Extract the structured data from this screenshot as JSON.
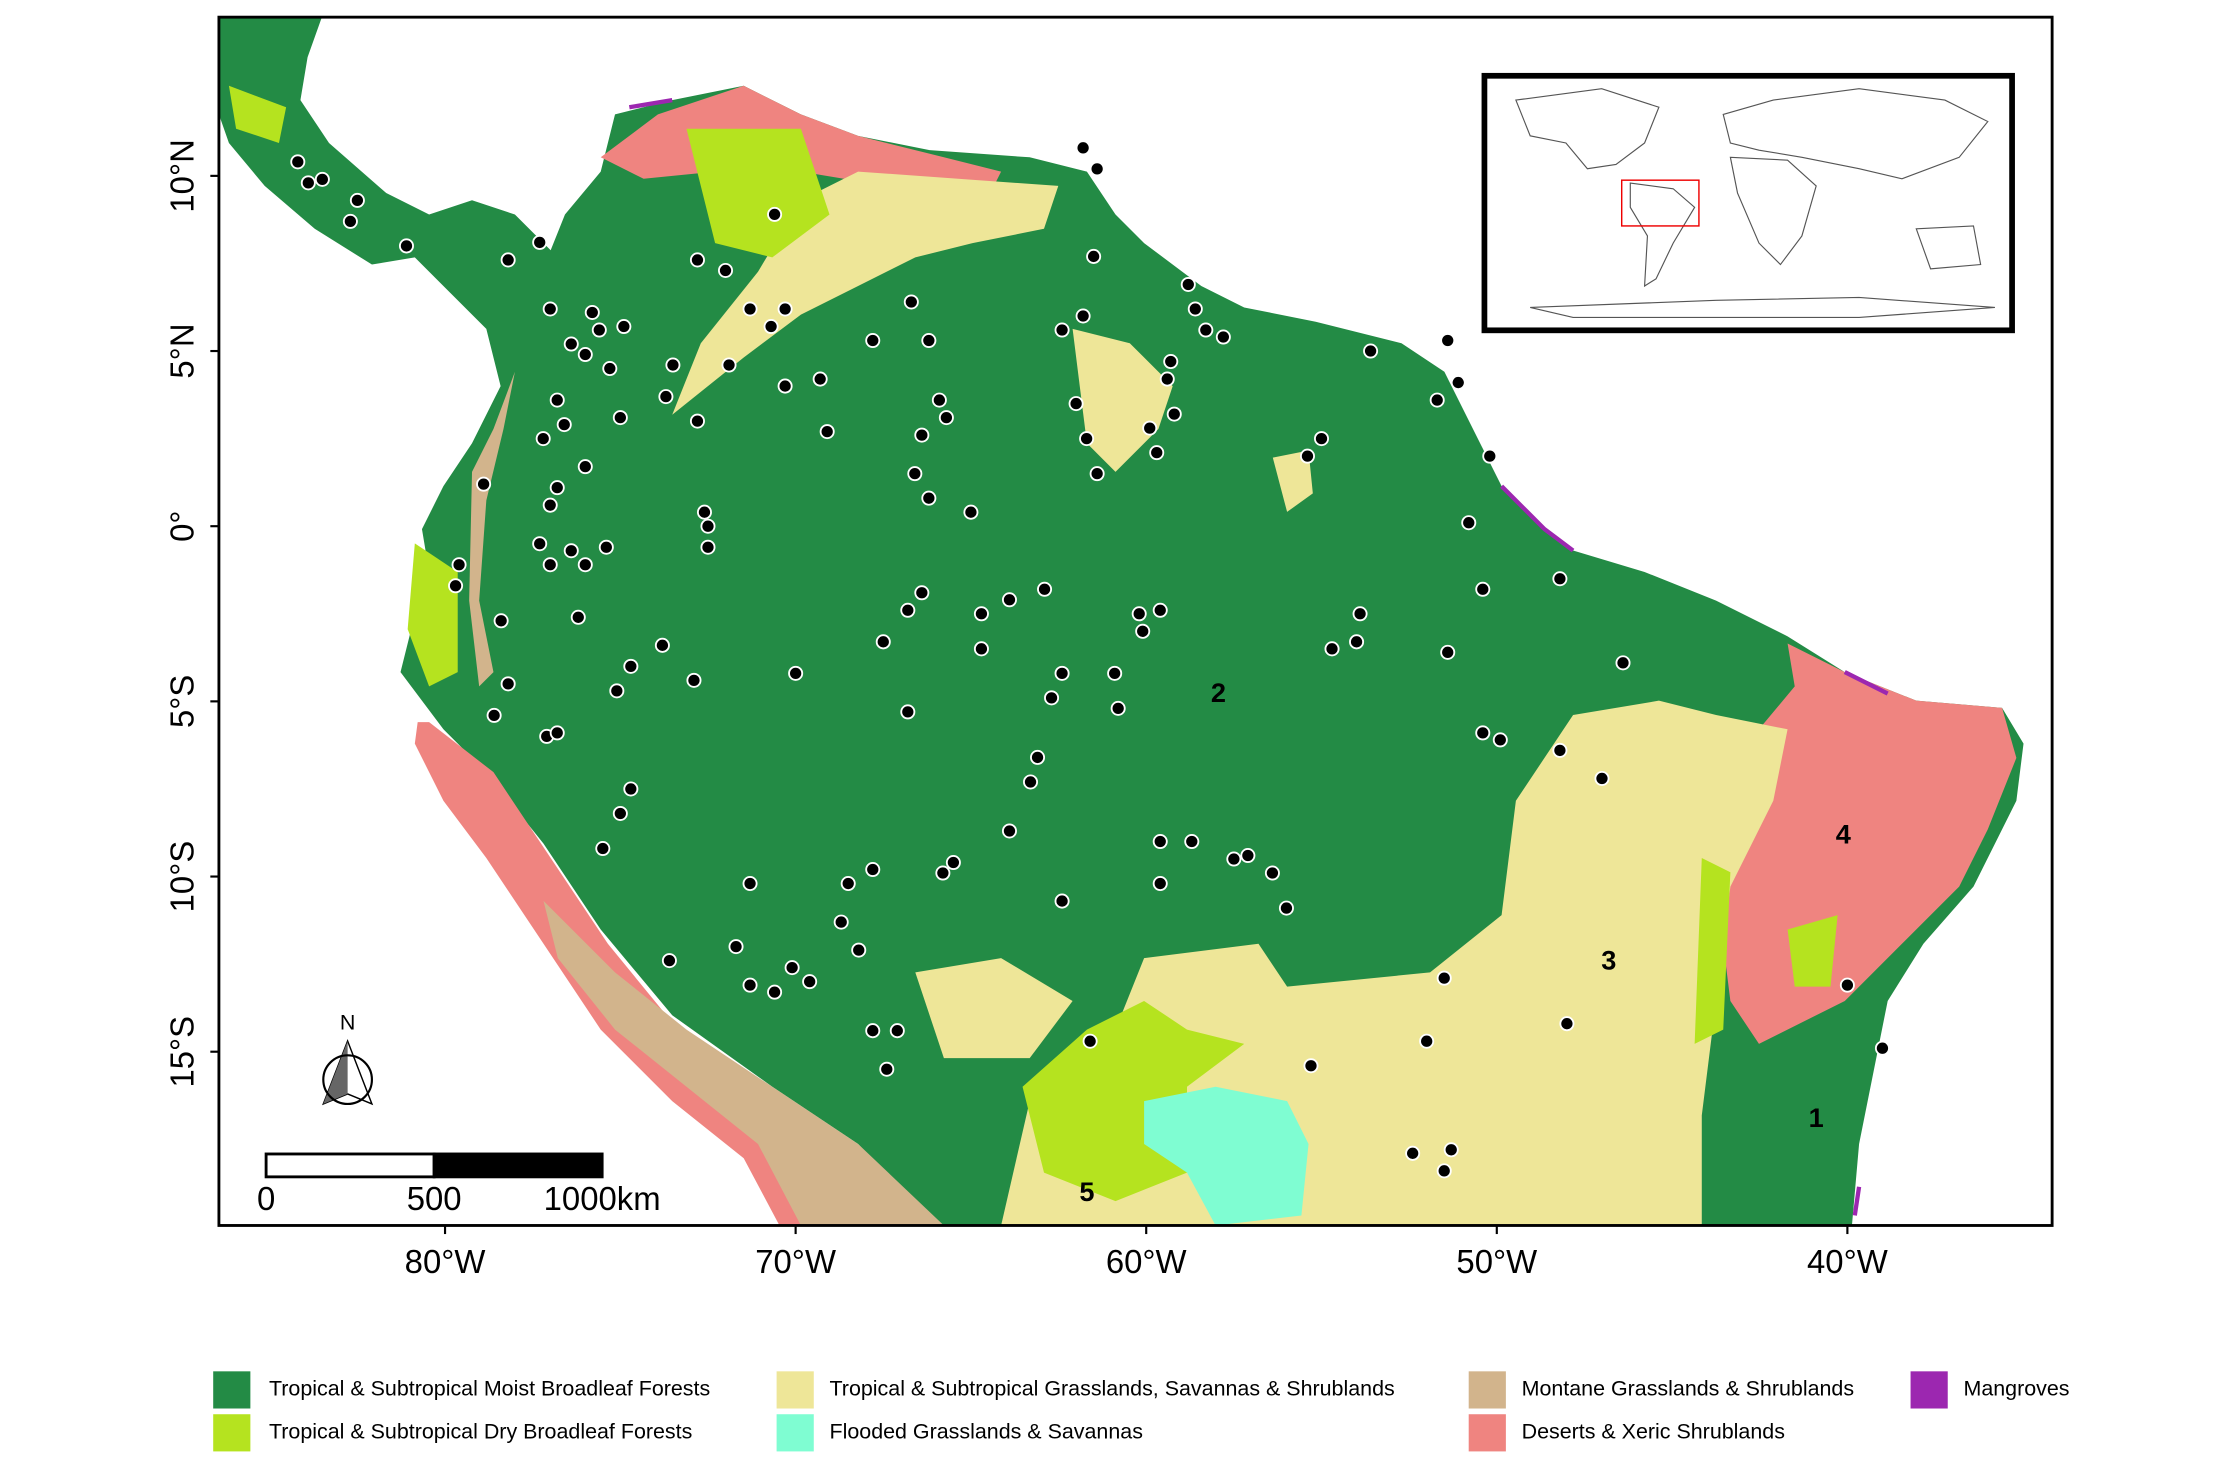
{
  "map": {
    "xlim": [
      -86.45,
      -34.16
    ],
    "ylim": [
      -19.96,
      14.53
    ],
    "xticks": [
      {
        "value": -80,
        "label": "80°W"
      },
      {
        "value": -70,
        "label": "70°W"
      },
      {
        "value": -60,
        "label": "60°W"
      },
      {
        "value": -50,
        "label": "50°W"
      },
      {
        "value": -40,
        "label": "40°W"
      }
    ],
    "yticks": [
      {
        "value": 10,
        "label": "10°N"
      },
      {
        "value": 5,
        "label": "5°N"
      },
      {
        "value": 0,
        "label": "0°"
      },
      {
        "value": -5,
        "label": "5°S"
      },
      {
        "value": -10,
        "label": "10°S"
      },
      {
        "value": -15,
        "label": "15°S"
      }
    ],
    "points": {
      "lon": [
        -84.2,
        -83.9,
        -83.5,
        -82.5,
        -82.7,
        -81.1,
        -78.2,
        -77.3,
        -70.6,
        -72.8,
        -72.0,
        -77.0,
        -75.8,
        -74.9,
        -75.6,
        -76.4,
        -76.0,
        -75.3,
        -73.5,
        -73.7,
        -75.0,
        -76.8,
        -77.2,
        -76.6,
        -76.0,
        -76.8,
        -77.0,
        -78.9,
        -79.6,
        -79.7,
        -77.3,
        -77.0,
        -76.4,
        -76.0,
        -75.4,
        -76.2,
        -78.4,
        -78.2,
        -78.6,
        -77.1,
        -76.8,
        -75.5,
        -75.0,
        -74.7,
        -74.7,
        -75.1,
        -73.8,
        -72.9,
        -72.8,
        -71.9,
        -71.3,
        -70.3,
        -70.7,
        -70.3,
        -69.3,
        -69.1,
        -67.8,
        -66.7,
        -66.2,
        -65.9,
        -65.7,
        -66.4,
        -66.6,
        -66.2,
        -65.0,
        -72.6,
        -72.5,
        -72.5,
        -70.0,
        -67.5,
        -66.8,
        -66.4,
        -64.7,
        -63.9,
        -62.9,
        -64.7,
        -66.8,
        -62.7,
        -62.4,
        -60.9,
        -60.8,
        -60.2,
        -59.6,
        -60.1,
        -63.1,
        -63.3,
        -63.9,
        -65.5,
        -65.8,
        -67.8,
        -68.5,
        -71.3,
        -68.7,
        -68.2,
        -70.1,
        -71.7,
        -71.3,
        -70.6,
        -69.6,
        -73.6,
        -67.8,
        -67.1,
        -67.4,
        -62.4,
        -59.6,
        -58.7,
        -59.6,
        -57.5,
        -57.1,
        -56.4,
        -56.0,
        -61.6,
        -55.3,
        -52.0,
        -48.0,
        -51.5,
        -47.0,
        -48.2,
        -49.9,
        -50.4,
        -46.4,
        -51.4,
        -54.0,
        -54.7,
        -53.9,
        -50.4,
        -48.2,
        -50.8,
        -50.2,
        -55.0,
        -55.4,
        -53.6,
        -51.4,
        -51.1,
        -51.7,
        -57.8,
        -58.3,
        -58.8,
        -58.6,
        -59.3,
        -59.4,
        -59.2,
        -59.9,
        -59.7,
        -61.8,
        -62.4,
        -61.5,
        -61.8,
        -61.4,
        -62.0,
        -61.7,
        -61.4,
        -52.4,
        -51.3,
        -51.5,
        -40.0,
        -39.0
      ],
      "lat": [
        10.4,
        9.8,
        9.9,
        9.3,
        8.7,
        8.0,
        7.6,
        8.1,
        8.9,
        7.6,
        7.3,
        6.2,
        6.1,
        5.7,
        5.6,
        5.2,
        4.9,
        4.5,
        4.6,
        3.7,
        3.1,
        3.6,
        2.5,
        2.9,
        1.7,
        1.1,
        0.6,
        1.2,
        -1.1,
        -1.7,
        -0.5,
        -1.1,
        -0.7,
        -1.1,
        -0.6,
        -2.6,
        -2.7,
        -4.5,
        -5.4,
        -6.0,
        -5.9,
        -9.2,
        -8.2,
        -7.5,
        -4.0,
        -4.7,
        -3.4,
        -4.4,
        3.0,
        4.6,
        6.2,
        6.2,
        5.7,
        4.0,
        4.2,
        2.7,
        5.3,
        6.4,
        5.3,
        3.6,
        3.1,
        2.6,
        1.5,
        0.8,
        0.4,
        0.4,
        0.0,
        -0.6,
        -4.2,
        -3.3,
        -2.4,
        -1.9,
        -2.5,
        -2.1,
        -1.8,
        -3.5,
        -5.3,
        -4.9,
        -4.2,
        -4.2,
        -5.2,
        -2.5,
        -2.4,
        -3.0,
        -6.6,
        -7.3,
        -8.7,
        -9.6,
        -9.9,
        -9.8,
        -10.2,
        -10.2,
        -11.3,
        -12.1,
        -12.6,
        -12.0,
        -13.1,
        -13.3,
        -13.0,
        -12.4,
        -14.4,
        -14.4,
        -15.5,
        -10.7,
        -9.0,
        -9.0,
        -10.2,
        -9.5,
        -9.4,
        -9.9,
        -10.9,
        -14.7,
        -15.4,
        -14.7,
        -14.2,
        -12.9,
        -7.2,
        -6.4,
        -6.1,
        -5.9,
        -3.9,
        -3.6,
        -3.3,
        -3.5,
        -2.5,
        -1.8,
        -1.5,
        0.1,
        2.0,
        2.5,
        2.0,
        5.0,
        5.3,
        4.1,
        3.6,
        5.4,
        5.6,
        6.9,
        6.2,
        4.7,
        4.2,
        3.2,
        2.8,
        2.1,
        6.0,
        5.6,
        7.7,
        10.8,
        10.2,
        3.5,
        2.5,
        1.5,
        -17.9,
        -17.8,
        -18.4,
        -13.1,
        -14.9
      ]
    },
    "region_labels": [
      "1",
      "2",
      "3",
      "4",
      "5"
    ],
    "north_label": "N",
    "scale_bar": [
      0,
      500,
      {
        "value": 1000,
        "label": "1000km"
      }
    ]
  },
  "legend": [
    {
      "label": "Tropical & Subtropical Moist Broadleaf Forests",
      "color": "#238b45"
    },
    {
      "label": "Tropical & Subtropical Dry Broadleaf Forests",
      "color": "#b5e31f"
    },
    {
      "label": "Tropical & Subtropical Grasslands, Savannas & Shrublands",
      "color": "#eee698"
    },
    {
      "label": "Flooded Grasslands & Savannas",
      "color": "#7ffdd2"
    },
    {
      "label": "Montane Grasslands & Shrublands",
      "color": "#d2b48c"
    },
    {
      "label": "Deserts & Xeric Shrublands",
      "color": "#ef8480"
    },
    {
      "label": "Mangroves",
      "color": "#9c27b0"
    }
  ]
}
